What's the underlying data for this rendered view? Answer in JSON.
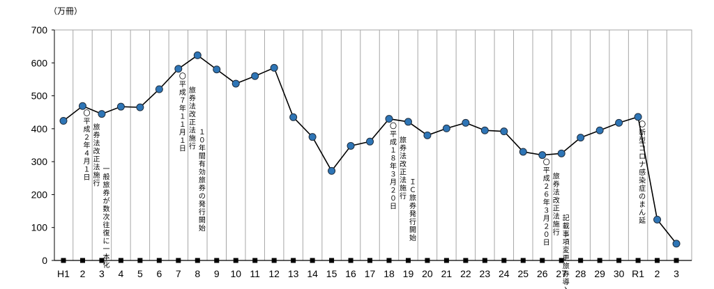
{
  "chart_data": {
    "type": "line",
    "title": "",
    "unit_label": "（万冊）",
    "xlabel": "",
    "ylabel": "",
    "ylim": [
      0,
      700
    ],
    "yticks": [
      "0",
      "100",
      "200",
      "300",
      "400",
      "500",
      "600",
      "700"
    ],
    "grid": "vertical",
    "categories": [
      "H1",
      "2",
      "3",
      "4",
      "5",
      "6",
      "7",
      "8",
      "9",
      "10",
      "11",
      "12",
      "13",
      "14",
      "15",
      "16",
      "17",
      "18",
      "19",
      "20",
      "21",
      "22",
      "23",
      "24",
      "25",
      "26",
      "27",
      "28",
      "29",
      "30",
      "R1",
      "2",
      "3"
    ],
    "series": [
      {
        "values": [
          424,
          469,
          445,
          467,
          465,
          520,
          582,
          623,
          580,
          537,
          560,
          585,
          435,
          375,
          272,
          348,
          361,
          430,
          421,
          380,
          401,
          418,
          395,
          392,
          330,
          320,
          325,
          373,
          395,
          418,
          436,
          124,
          51
        ]
      }
    ],
    "baseline_markers": true,
    "annotations": [
      {
        "at": "2",
        "lines": [
          "〇平成２年４月１日",
          "旅券法改正法施行",
          "一般旅券が数次往復に一本化"
        ]
      },
      {
        "at": "7",
        "lines": [
          "〇平成７年１１月１日",
          "旅券法改正法施行",
          "１０年間有効旅券の発行開始"
        ]
      },
      {
        "at": "18",
        "lines": [
          "〇平成１８年３月２０日",
          "旅券法改正法施行",
          "ＩＣ旅券発行開始"
        ]
      },
      {
        "at": "26",
        "lines": [
          "〇平成２６年３月２０日",
          "旅券法改正法施行",
          "記載事項変更旅券導入"
        ]
      },
      {
        "at": "R1",
        "lines": [
          "〇新型コロナ感染症のまん延"
        ]
      }
    ],
    "colors": {
      "marker_fill": "#2e75b6",
      "marker_stroke": "#1f2d3d",
      "line": "#000000",
      "grid": "#a6a6a6",
      "baseline_marker": "#000000"
    }
  }
}
